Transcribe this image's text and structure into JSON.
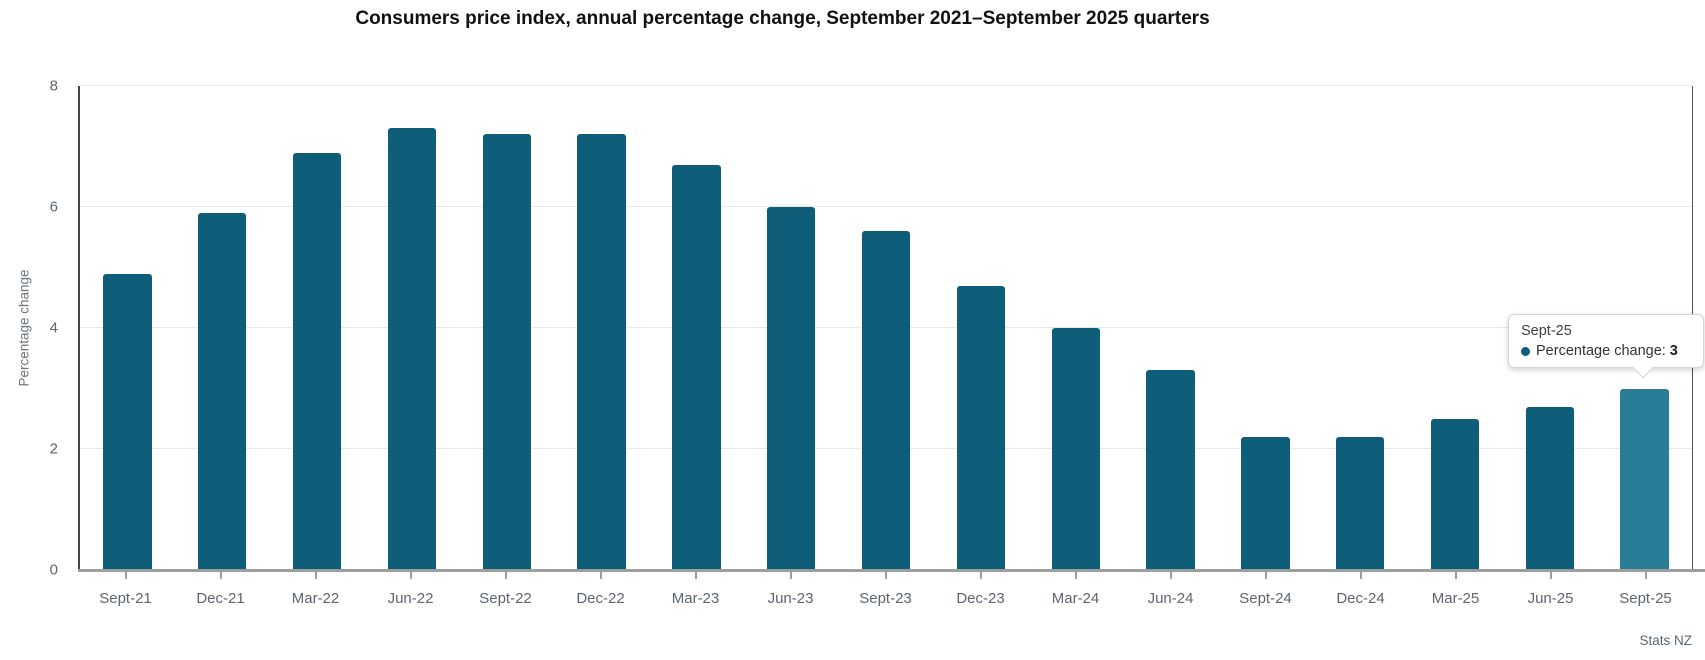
{
  "chart_data": {
    "type": "bar",
    "title": "Consumers price index, annual percentage change, September 2021–September 2025 quarters",
    "ylabel": "Percentage change",
    "xlabel": "",
    "source": "Stats NZ",
    "categories": [
      "Sept-21",
      "Dec-21",
      "Mar-22",
      "Jun-22",
      "Sept-22",
      "Dec-22",
      "Mar-23",
      "Jun-23",
      "Sept-23",
      "Dec-23",
      "Mar-24",
      "Jun-24",
      "Sept-24",
      "Dec-24",
      "Mar-25",
      "Jun-25",
      "Sept-25"
    ],
    "values": [
      4.9,
      5.9,
      6.9,
      7.3,
      7.2,
      7.2,
      6.7,
      6.0,
      5.6,
      4.7,
      4.0,
      3.3,
      2.2,
      2.2,
      2.5,
      2.7,
      3.0
    ],
    "series_name": "Percentage change",
    "ylim": [
      0,
      8
    ],
    "yticks": [
      0,
      2,
      4,
      6,
      8
    ],
    "grid": true,
    "legend": false,
    "bar_color": "#0e5e79",
    "highlight_color": "#2a7d96",
    "highlight_index": 16
  },
  "tooltip": {
    "category": "Sept-25",
    "series_label": "Percentage change:",
    "value": "3"
  }
}
